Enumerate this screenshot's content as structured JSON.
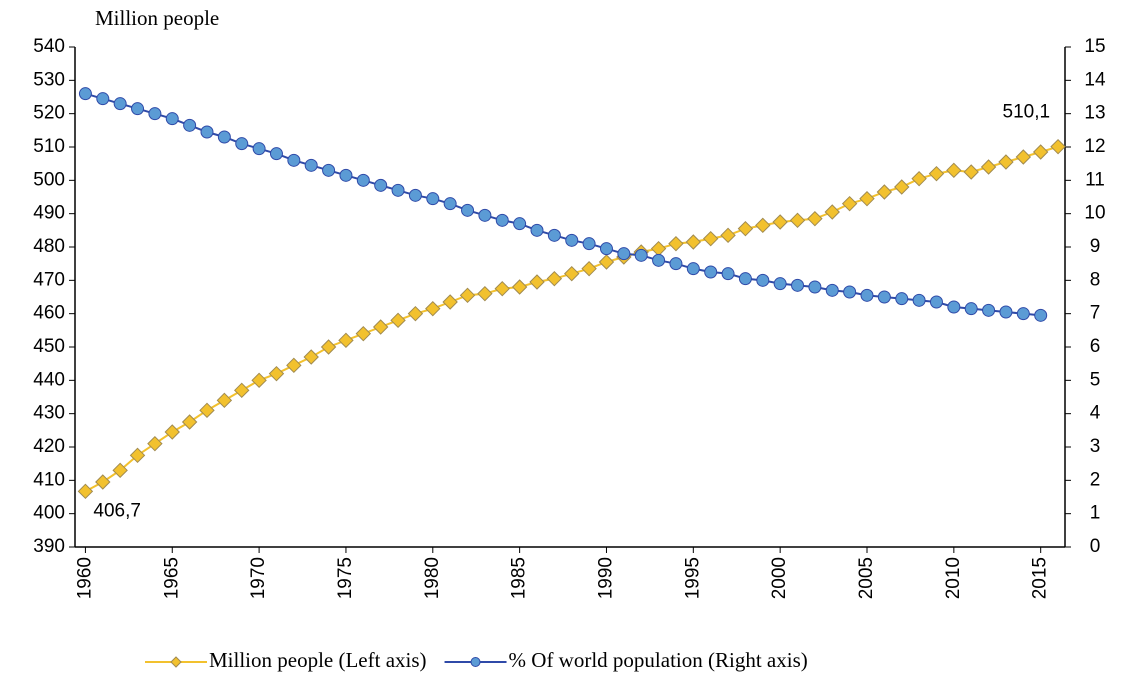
{
  "chart_data": {
    "type": "line",
    "y_label": "Million people",
    "x": [
      1960,
      1961,
      1962,
      1963,
      1964,
      1965,
      1966,
      1967,
      1968,
      1969,
      1970,
      1971,
      1972,
      1973,
      1974,
      1975,
      1976,
      1977,
      1978,
      1979,
      1980,
      1981,
      1982,
      1983,
      1984,
      1985,
      1986,
      1987,
      1988,
      1989,
      1990,
      1991,
      1992,
      1993,
      1994,
      1995,
      1996,
      1997,
      1998,
      1999,
      2000,
      2001,
      2002,
      2003,
      2004,
      2005,
      2006,
      2007,
      2008,
      2009,
      2010,
      2011,
      2012,
      2013,
      2014,
      2015,
      2016
    ],
    "series": [
      {
        "name": "Million people (Left axis)",
        "color": "#f2c12e",
        "axis": "y",
        "marker": "diamond",
        "values": [
          406.7,
          409.5,
          413,
          417.5,
          421,
          424.5,
          427.5,
          431,
          434,
          437,
          440,
          442,
          444.5,
          447,
          450,
          452,
          454,
          456,
          458,
          460,
          461.5,
          463.5,
          465.5,
          466,
          467.5,
          468,
          469.5,
          470.5,
          472,
          473.5,
          475.5,
          477,
          478.5,
          479.5,
          481,
          481.5,
          482.5,
          483.5,
          485.5,
          486.5,
          487.5,
          488,
          488.5,
          490.5,
          493,
          494.5,
          496.5,
          498,
          500.5,
          502,
          503,
          502.5,
          504,
          505.5,
          507,
          508.5,
          510.1
        ],
        "value_labels": [
          "406,7",
          null,
          null,
          null,
          null,
          null,
          null,
          null,
          null,
          null,
          null,
          null,
          null,
          null,
          null,
          null,
          null,
          null,
          null,
          null,
          null,
          null,
          null,
          null,
          null,
          null,
          null,
          null,
          null,
          null,
          null,
          null,
          null,
          null,
          null,
          null,
          null,
          null,
          null,
          null,
          null,
          null,
          null,
          null,
          null,
          null,
          null,
          null,
          null,
          null,
          null,
          null,
          null,
          null,
          null,
          null,
          "510,1"
        ]
      },
      {
        "name": "% Of world population (Right axis)",
        "color": "#5b9bd5",
        "axis": "y2",
        "marker": "circle",
        "values": [
          13.6,
          13.45,
          13.3,
          13.15,
          13.0,
          12.85,
          12.65,
          12.45,
          12.3,
          12.1,
          11.95,
          11.8,
          11.6,
          11.45,
          11.3,
          11.15,
          11.0,
          10.85,
          10.7,
          10.55,
          10.45,
          10.3,
          10.1,
          9.95,
          9.8,
          9.7,
          9.5,
          9.35,
          9.2,
          9.1,
          8.95,
          8.8,
          8.75,
          8.6,
          8.5,
          8.35,
          8.25,
          8.2,
          8.05,
          8.0,
          7.9,
          7.85,
          7.8,
          7.7,
          7.65,
          7.55,
          7.5,
          7.45,
          7.4,
          7.35,
          7.2,
          7.15,
          7.1,
          7.05,
          7.0,
          6.95,
          null
        ]
      }
    ],
    "xlim": [
      1959.4,
      2016.4
    ],
    "xticks": [
      1960,
      1965,
      1970,
      1975,
      1980,
      1985,
      1990,
      1995,
      2000,
      2005,
      2010,
      2015
    ],
    "ylim": [
      390,
      540
    ],
    "yticks": [
      390,
      400,
      410,
      420,
      430,
      440,
      450,
      460,
      470,
      480,
      490,
      500,
      510,
      520,
      530,
      540
    ],
    "y2lim": [
      0,
      15
    ],
    "y2ticks": [
      0,
      1,
      2,
      3,
      4,
      5,
      6,
      7,
      8,
      9,
      10,
      11,
      12,
      13,
      14,
      15
    ],
    "grid": false,
    "legend": "bottom"
  }
}
